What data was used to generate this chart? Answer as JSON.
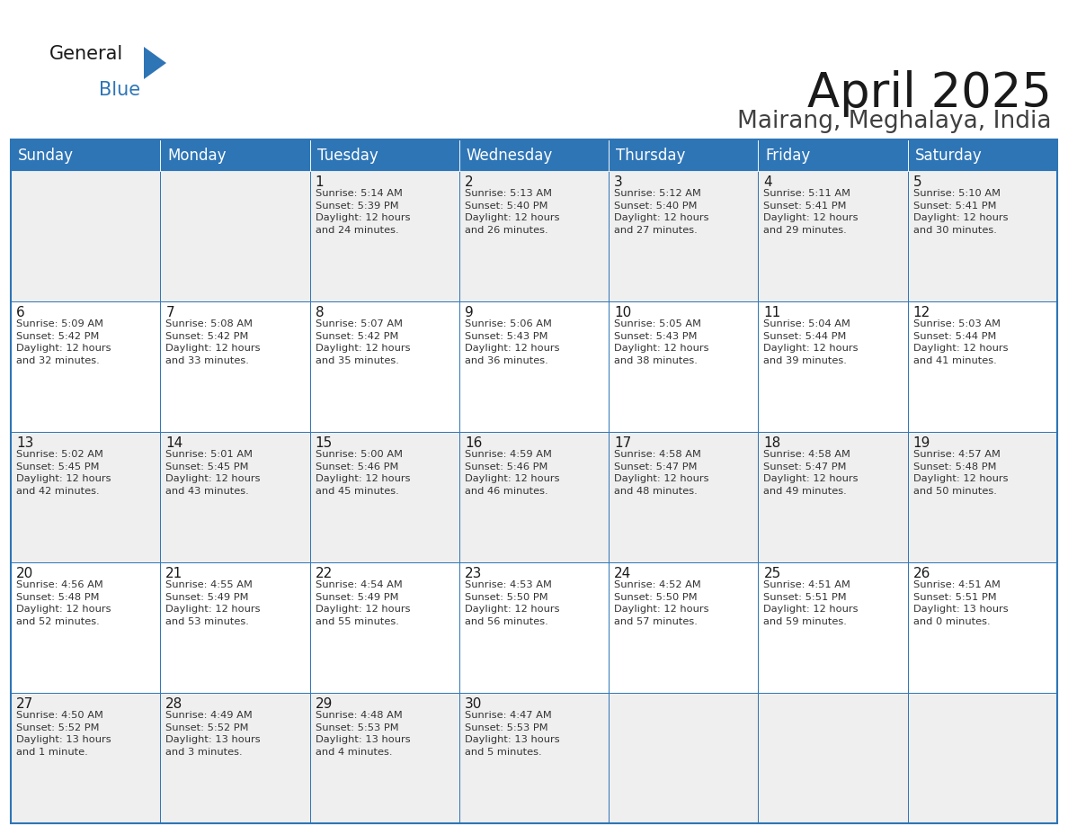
{
  "title": "April 2025",
  "subtitle": "Mairang, Meghalaya, India",
  "header_bg": "#2E75B6",
  "header_text_color": "#FFFFFF",
  "border_color": "#2E75B6",
  "text_dark": "#1a1a1a",
  "text_info": "#333333",
  "day_headers": [
    "Sunday",
    "Monday",
    "Tuesday",
    "Wednesday",
    "Thursday",
    "Friday",
    "Saturday"
  ],
  "weeks": [
    [
      {
        "day": "",
        "info": ""
      },
      {
        "day": "",
        "info": ""
      },
      {
        "day": "1",
        "info": "Sunrise: 5:14 AM\nSunset: 5:39 PM\nDaylight: 12 hours\nand 24 minutes."
      },
      {
        "day": "2",
        "info": "Sunrise: 5:13 AM\nSunset: 5:40 PM\nDaylight: 12 hours\nand 26 minutes."
      },
      {
        "day": "3",
        "info": "Sunrise: 5:12 AM\nSunset: 5:40 PM\nDaylight: 12 hours\nand 27 minutes."
      },
      {
        "day": "4",
        "info": "Sunrise: 5:11 AM\nSunset: 5:41 PM\nDaylight: 12 hours\nand 29 minutes."
      },
      {
        "day": "5",
        "info": "Sunrise: 5:10 AM\nSunset: 5:41 PM\nDaylight: 12 hours\nand 30 minutes."
      }
    ],
    [
      {
        "day": "6",
        "info": "Sunrise: 5:09 AM\nSunset: 5:42 PM\nDaylight: 12 hours\nand 32 minutes."
      },
      {
        "day": "7",
        "info": "Sunrise: 5:08 AM\nSunset: 5:42 PM\nDaylight: 12 hours\nand 33 minutes."
      },
      {
        "day": "8",
        "info": "Sunrise: 5:07 AM\nSunset: 5:42 PM\nDaylight: 12 hours\nand 35 minutes."
      },
      {
        "day": "9",
        "info": "Sunrise: 5:06 AM\nSunset: 5:43 PM\nDaylight: 12 hours\nand 36 minutes."
      },
      {
        "day": "10",
        "info": "Sunrise: 5:05 AM\nSunset: 5:43 PM\nDaylight: 12 hours\nand 38 minutes."
      },
      {
        "day": "11",
        "info": "Sunrise: 5:04 AM\nSunset: 5:44 PM\nDaylight: 12 hours\nand 39 minutes."
      },
      {
        "day": "12",
        "info": "Sunrise: 5:03 AM\nSunset: 5:44 PM\nDaylight: 12 hours\nand 41 minutes."
      }
    ],
    [
      {
        "day": "13",
        "info": "Sunrise: 5:02 AM\nSunset: 5:45 PM\nDaylight: 12 hours\nand 42 minutes."
      },
      {
        "day": "14",
        "info": "Sunrise: 5:01 AM\nSunset: 5:45 PM\nDaylight: 12 hours\nand 43 minutes."
      },
      {
        "day": "15",
        "info": "Sunrise: 5:00 AM\nSunset: 5:46 PM\nDaylight: 12 hours\nand 45 minutes."
      },
      {
        "day": "16",
        "info": "Sunrise: 4:59 AM\nSunset: 5:46 PM\nDaylight: 12 hours\nand 46 minutes."
      },
      {
        "day": "17",
        "info": "Sunrise: 4:58 AM\nSunset: 5:47 PM\nDaylight: 12 hours\nand 48 minutes."
      },
      {
        "day": "18",
        "info": "Sunrise: 4:58 AM\nSunset: 5:47 PM\nDaylight: 12 hours\nand 49 minutes."
      },
      {
        "day": "19",
        "info": "Sunrise: 4:57 AM\nSunset: 5:48 PM\nDaylight: 12 hours\nand 50 minutes."
      }
    ],
    [
      {
        "day": "20",
        "info": "Sunrise: 4:56 AM\nSunset: 5:48 PM\nDaylight: 12 hours\nand 52 minutes."
      },
      {
        "day": "21",
        "info": "Sunrise: 4:55 AM\nSunset: 5:49 PM\nDaylight: 12 hours\nand 53 minutes."
      },
      {
        "day": "22",
        "info": "Sunrise: 4:54 AM\nSunset: 5:49 PM\nDaylight: 12 hours\nand 55 minutes."
      },
      {
        "day": "23",
        "info": "Sunrise: 4:53 AM\nSunset: 5:50 PM\nDaylight: 12 hours\nand 56 minutes."
      },
      {
        "day": "24",
        "info": "Sunrise: 4:52 AM\nSunset: 5:50 PM\nDaylight: 12 hours\nand 57 minutes."
      },
      {
        "day": "25",
        "info": "Sunrise: 4:51 AM\nSunset: 5:51 PM\nDaylight: 12 hours\nand 59 minutes."
      },
      {
        "day": "26",
        "info": "Sunrise: 4:51 AM\nSunset: 5:51 PM\nDaylight: 13 hours\nand 0 minutes."
      }
    ],
    [
      {
        "day": "27",
        "info": "Sunrise: 4:50 AM\nSunset: 5:52 PM\nDaylight: 13 hours\nand 1 minute."
      },
      {
        "day": "28",
        "info": "Sunrise: 4:49 AM\nSunset: 5:52 PM\nDaylight: 13 hours\nand 3 minutes."
      },
      {
        "day": "29",
        "info": "Sunrise: 4:48 AM\nSunset: 5:53 PM\nDaylight: 13 hours\nand 4 minutes."
      },
      {
        "day": "30",
        "info": "Sunrise: 4:47 AM\nSunset: 5:53 PM\nDaylight: 13 hours\nand 5 minutes."
      },
      {
        "day": "",
        "info": ""
      },
      {
        "day": "",
        "info": ""
      },
      {
        "day": "",
        "info": ""
      }
    ]
  ],
  "title_fontsize": 38,
  "subtitle_fontsize": 19,
  "day_header_fontsize": 12,
  "day_num_fontsize": 11,
  "info_fontsize": 8.2,
  "logo_general_fontsize": 15,
  "logo_blue_fontsize": 15
}
